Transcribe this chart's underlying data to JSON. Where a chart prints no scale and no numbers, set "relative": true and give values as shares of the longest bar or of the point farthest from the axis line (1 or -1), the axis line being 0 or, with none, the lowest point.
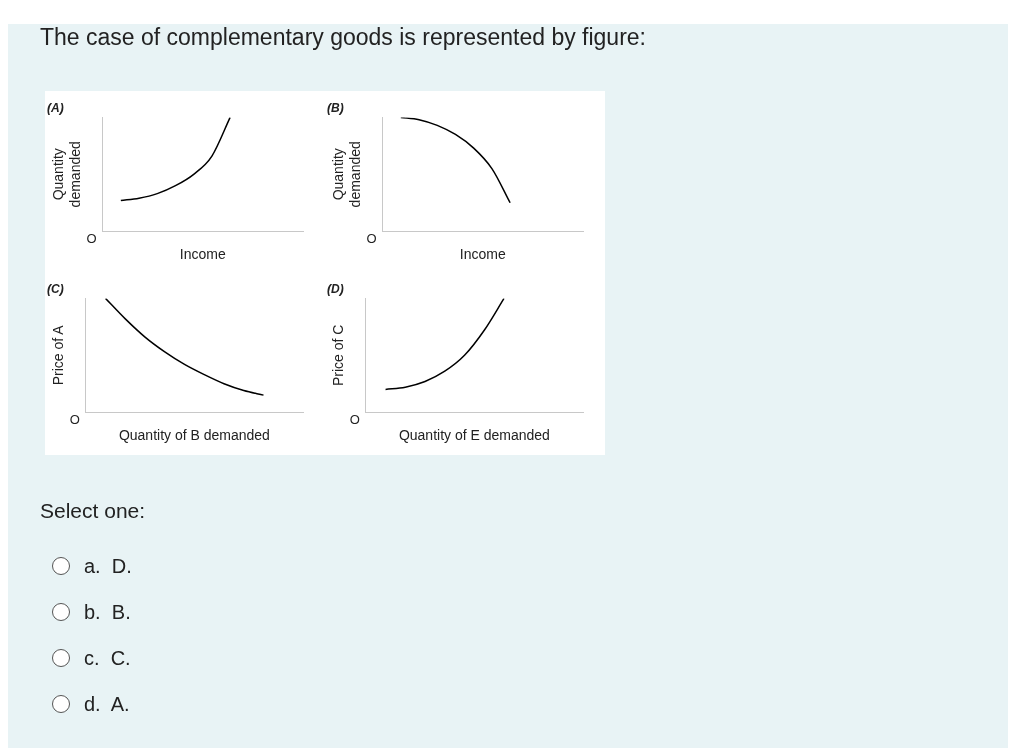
{
  "chart_data": [
    {
      "type": "other",
      "title": "The case of complementary goods is represented by figure:"
    },
    {
      "type": "line",
      "title": "(A)",
      "xlabel": "Income",
      "ylabel": "Quantity demanded",
      "relative": true,
      "tick_labels": false,
      "marker": "none",
      "annotations": [
        "O"
      ],
      "categories": [
        null,
        null,
        null,
        null,
        null,
        null,
        null,
        null,
        null,
        null,
        null,
        null
      ],
      "series": [
        {
          "color": "#000000",
          "values": [
            null,
            0.27,
            0.29,
            0.33,
            0.4,
            0.5,
            0.66,
            1.0,
            null,
            null,
            null,
            null
          ]
        }
      ]
    },
    {
      "type": "line",
      "title": "(B)",
      "xlabel": "Income",
      "ylabel": "Quantity demanded",
      "relative": true,
      "tick_labels": false,
      "marker": "none",
      "annotations": [
        "O"
      ],
      "categories": [
        null,
        null,
        null,
        null,
        null,
        null,
        null,
        null,
        null,
        null,
        null,
        null
      ],
      "series": [
        {
          "color": "#000000",
          "values": [
            null,
            1.0,
            0.98,
            0.93,
            0.85,
            0.73,
            0.55,
            0.25,
            null,
            null,
            null,
            null
          ]
        }
      ]
    },
    {
      "type": "line",
      "title": "(C)",
      "xlabel": "Quantity of B demanded",
      "ylabel": "Price of A",
      "relative": true,
      "tick_labels": false,
      "marker": "none",
      "annotations": [
        "O"
      ],
      "categories": [
        null,
        null,
        null,
        null,
        null,
        null,
        null,
        null,
        null,
        null,
        null,
        null
      ],
      "series": [
        {
          "color": "#000000",
          "values": [
            null,
            1.0,
            0.82,
            0.66,
            0.53,
            0.42,
            0.33,
            0.25,
            0.19,
            0.15,
            null,
            null
          ]
        }
      ]
    },
    {
      "type": "line",
      "title": "(D)",
      "xlabel": "Quantity of E demanded",
      "ylabel": "Price of C",
      "relative": true,
      "tick_labels": false,
      "marker": "none",
      "annotations": [
        "O"
      ],
      "categories": [
        null,
        null,
        null,
        null,
        null,
        null,
        null,
        null,
        null,
        null,
        null,
        null
      ],
      "series": [
        {
          "color": "#000000",
          "values": [
            null,
            0.2,
            0.22,
            0.27,
            0.36,
            0.5,
            0.72,
            1.0,
            null,
            null,
            null,
            null
          ]
        }
      ]
    },
    {
      "type": "other",
      "annotations": [
        "Select one:",
        "a. D.",
        "b. B.",
        "c. C.",
        "d. A."
      ]
    }
  ]
}
